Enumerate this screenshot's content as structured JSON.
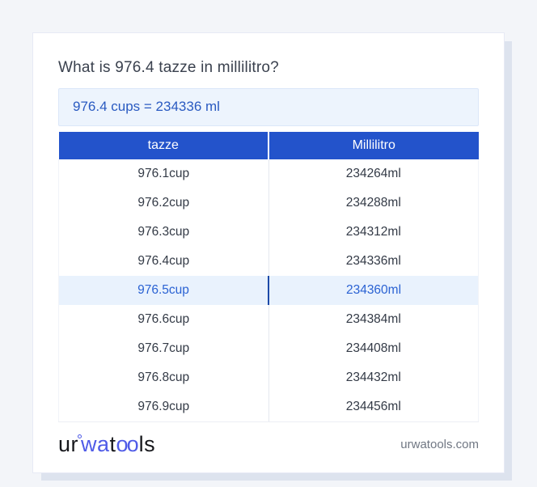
{
  "page": {
    "title": "What is 976.4 tazze in millilitro?",
    "result_text": "976.4 cups = 234336 ml"
  },
  "table": {
    "headers": [
      "tazze",
      "Millilitro"
    ],
    "rows": [
      {
        "tazze": "976.1cup",
        "millilitro": "234264ml",
        "highlighted": false
      },
      {
        "tazze": "976.2cup",
        "millilitro": "234288ml",
        "highlighted": false
      },
      {
        "tazze": "976.3cup",
        "millilitro": "234312ml",
        "highlighted": false
      },
      {
        "tazze": "976.4cup",
        "millilitro": "234336ml",
        "highlighted": false
      },
      {
        "tazze": "976.5cup",
        "millilitro": "234360ml",
        "highlighted": true
      },
      {
        "tazze": "976.6cup",
        "millilitro": "234384ml",
        "highlighted": false
      },
      {
        "tazze": "976.7cup",
        "millilitro": "234408ml",
        "highlighted": false
      },
      {
        "tazze": "976.8cup",
        "millilitro": "234432ml",
        "highlighted": false
      },
      {
        "tazze": "976.9cup",
        "millilitro": "234456ml",
        "highlighted": false
      }
    ]
  },
  "footer": {
    "logo": {
      "seg1": "ur",
      "seg2": "wa",
      "seg3": "t",
      "seg4": "oo",
      "seg5": "ls"
    },
    "website": "urwatools.com"
  },
  "colors": {
    "page_background": "#f3f5f9",
    "table_header_blue": "#2353cb",
    "highlight_row_bg": "#e9f2fd",
    "highlight_row_text": "#2a62d3",
    "result_box_bg": "#edf4fd",
    "result_text_blue": "#2a5ac1",
    "logo_blue": "#4f5be7"
  }
}
